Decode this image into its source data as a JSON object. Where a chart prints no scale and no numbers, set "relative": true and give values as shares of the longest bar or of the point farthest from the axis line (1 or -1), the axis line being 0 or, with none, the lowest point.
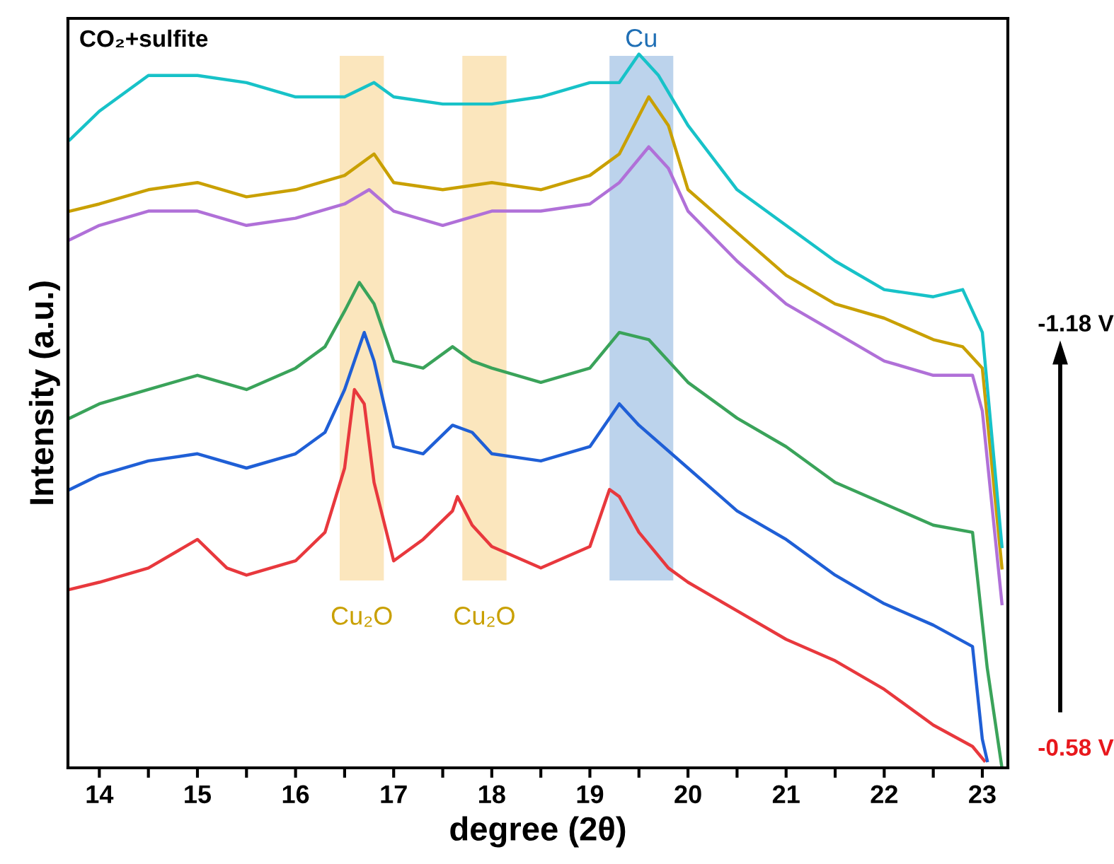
{
  "chart_data": {
    "type": "line",
    "relative": true,
    "xlabel": "degree (2θ)",
    "ylabel": "Intensity (a.u.)",
    "xlim": [
      13.68,
      23.26
    ],
    "xticks": [
      14,
      {
        "value": 14.5,
        "label": null
      },
      15,
      {
        "value": 15.5,
        "label": null
      },
      16,
      {
        "value": 16.5,
        "label": null
      },
      17,
      {
        "value": 17.5,
        "label": null
      },
      18,
      {
        "value": 18.5,
        "label": null
      },
      19,
      {
        "value": 19.5,
        "label": null
      },
      20,
      {
        "value": 20.5,
        "label": null
      },
      21,
      {
        "value": 21.5,
        "label": null
      },
      22,
      {
        "value": 22.5,
        "label": null
      },
      23
    ],
    "tick_labels": "x",
    "grid": false,
    "legend": false,
    "series": [
      {
        "color": "#e8383d",
        "x": [
          13.7,
          14,
          14.5,
          15,
          15.3,
          15.5,
          16,
          16.3,
          16.5,
          16.6,
          16.7,
          16.8,
          17.0,
          17.3,
          17.6,
          17.65,
          17.8,
          18.0,
          18.5,
          19.0,
          19.2,
          19.3,
          19.5,
          19.8,
          20,
          20.5,
          21,
          21.5,
          22,
          22.5,
          22.9,
          23.02
        ],
        "values": [
          0.25,
          0.26,
          0.28,
          0.32,
          0.28,
          0.27,
          0.29,
          0.33,
          0.42,
          0.53,
          0.51,
          0.4,
          0.29,
          0.32,
          0.36,
          0.38,
          0.34,
          0.31,
          0.28,
          0.31,
          0.39,
          0.38,
          0.33,
          0.28,
          0.26,
          0.22,
          0.18,
          0.15,
          0.11,
          0.06,
          0.03,
          0.01
        ]
      },
      {
        "color": "#1f5fd6",
        "x": [
          13.7,
          14,
          14.5,
          15,
          15.5,
          16,
          16.3,
          16.5,
          16.7,
          16.8,
          17.0,
          17.3,
          17.6,
          17.8,
          18.0,
          18.5,
          19,
          19.3,
          19.5,
          20,
          20.5,
          21,
          21.5,
          22,
          22.5,
          22.9,
          23.0,
          23.05
        ],
        "values": [
          0.39,
          0.41,
          0.43,
          0.44,
          0.42,
          0.44,
          0.47,
          0.53,
          0.61,
          0.57,
          0.45,
          0.44,
          0.48,
          0.47,
          0.44,
          0.43,
          0.45,
          0.51,
          0.48,
          0.42,
          0.36,
          0.32,
          0.27,
          0.23,
          0.2,
          0.17,
          0.04,
          0.01
        ]
      },
      {
        "color": "#3aa35a",
        "x": [
          13.7,
          14,
          14.5,
          15,
          15.5,
          16,
          16.3,
          16.5,
          16.65,
          16.8,
          17.0,
          17.3,
          17.6,
          17.8,
          18,
          18.5,
          19,
          19.3,
          19.6,
          19.8,
          20,
          20.5,
          21,
          21.5,
          22,
          22.5,
          22.9,
          23.05,
          23.2
        ],
        "values": [
          0.49,
          0.51,
          0.53,
          0.55,
          0.53,
          0.56,
          0.59,
          0.64,
          0.68,
          0.65,
          0.57,
          0.56,
          0.59,
          0.57,
          0.56,
          0.54,
          0.56,
          0.61,
          0.6,
          0.57,
          0.54,
          0.49,
          0.45,
          0.4,
          0.37,
          0.34,
          0.33,
          0.14,
          0.0
        ]
      },
      {
        "color": "#b070d8",
        "x": [
          13.7,
          14,
          14.5,
          15,
          15.5,
          16,
          16.5,
          16.75,
          17,
          17.5,
          18,
          18.5,
          19,
          19.3,
          19.6,
          19.8,
          20,
          20.5,
          21,
          21.5,
          22,
          22.5,
          22.9,
          23.0,
          23.2
        ],
        "values": [
          0.74,
          0.76,
          0.78,
          0.78,
          0.76,
          0.77,
          0.79,
          0.81,
          0.78,
          0.76,
          0.78,
          0.78,
          0.79,
          0.82,
          0.87,
          0.84,
          0.78,
          0.71,
          0.65,
          0.61,
          0.57,
          0.55,
          0.55,
          0.5,
          0.23
        ]
      },
      {
        "color": "#c9a000",
        "x": [
          13.7,
          14,
          14.5,
          15,
          15.5,
          16,
          16.5,
          16.8,
          17,
          17.5,
          18,
          18.5,
          19,
          19.3,
          19.6,
          19.8,
          20,
          20.5,
          21,
          21.5,
          22,
          22.5,
          22.8,
          23.0,
          23.2
        ],
        "values": [
          0.78,
          0.79,
          0.81,
          0.82,
          0.8,
          0.81,
          0.83,
          0.86,
          0.82,
          0.81,
          0.82,
          0.81,
          0.83,
          0.86,
          0.94,
          0.9,
          0.81,
          0.75,
          0.69,
          0.65,
          0.63,
          0.6,
          0.59,
          0.56,
          0.28
        ]
      },
      {
        "color": "#17c2c8",
        "x": [
          13.7,
          14,
          14.5,
          15,
          15.5,
          16,
          16.5,
          16.8,
          17,
          17.5,
          18,
          18.5,
          19,
          19.3,
          19.5,
          19.7,
          20,
          20.5,
          21,
          21.5,
          22,
          22.5,
          22.8,
          23.0,
          23.2
        ],
        "values": [
          0.88,
          0.92,
          0.97,
          0.97,
          0.96,
          0.94,
          0.94,
          0.96,
          0.94,
          0.93,
          0.93,
          0.94,
          0.96,
          0.96,
          1.0,
          0.97,
          0.9,
          0.81,
          0.76,
          0.71,
          0.67,
          0.66,
          0.67,
          0.61,
          0.31
        ]
      }
    ],
    "bands": [
      {
        "axis": "x",
        "from": 16.45,
        "to": 16.9,
        "color": "#fbe6bd"
      },
      {
        "axis": "x",
        "from": 17.7,
        "to": 18.15,
        "color": "#fbe6bd"
      },
      {
        "axis": "x",
        "from": 19.2,
        "to": 19.85,
        "color": "#bcd3ec"
      }
    ],
    "annotations": [
      "CO₂+sulfite",
      "Cu₂O",
      "Cu₂O",
      "Cu",
      "-1.18 V",
      "-0.58 V"
    ]
  }
}
